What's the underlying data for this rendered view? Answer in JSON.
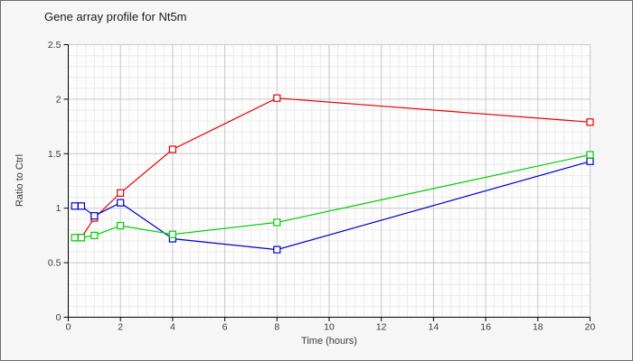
{
  "chart_data": {
    "type": "line",
    "title": "Gene array profile for Nt5m",
    "xlabel": "Time (hours)",
    "ylabel": "Ratio to Ctrl",
    "xlim": [
      0,
      20
    ],
    "ylim": [
      0,
      2.5
    ],
    "xticks": [
      0,
      2,
      4,
      6,
      8,
      10,
      12,
      14,
      16,
      18,
      20
    ],
    "yticks": [
      0,
      0.5,
      1,
      1.5,
      2,
      2.5
    ],
    "grid": {
      "shown": true,
      "minor_x_step_hours": 0.3333,
      "minor_y_step": 0.1,
      "major_x_step_hours": 2,
      "major_y_step": 0.5
    },
    "legend": "none",
    "marker": "open-square",
    "series": [
      {
        "name": "series-red",
        "color": "#e80000",
        "x": [
          0.5,
          1,
          2,
          4,
          8,
          20
        ],
        "values": [
          0.73,
          0.91,
          1.14,
          1.54,
          2.01,
          1.79
        ]
      },
      {
        "name": "series-blue",
        "color": "#0000cc",
        "x": [
          0.25,
          0.5,
          1,
          2,
          4,
          8,
          20
        ],
        "values": [
          1.02,
          1.02,
          0.93,
          1.05,
          0.72,
          0.62,
          1.43
        ]
      },
      {
        "name": "series-green",
        "color": "#00cc00",
        "x": [
          0.25,
          0.5,
          1,
          2,
          4,
          8,
          20
        ],
        "values": [
          0.73,
          0.73,
          0.75,
          0.84,
          0.76,
          0.87,
          1.49
        ]
      }
    ],
    "colors": {
      "plot_background": "#fdfdfd",
      "figure_background": "#f6f6f6",
      "minor_grid": "#ececec",
      "major_grid": "#c8c8c8",
      "axis": "#000000",
      "text": "#3a3a3a"
    }
  }
}
